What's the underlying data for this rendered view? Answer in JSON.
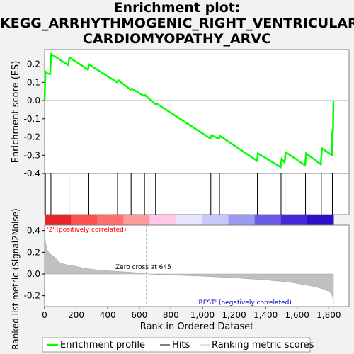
{
  "title_lines": [
    "Enrichment plot:",
    "KEGG_ARRHYTHMOGENIC_RIGHT_VENTRICULAR_",
    "CARDIOMYOPATHY_ARVC"
  ],
  "chart_data": {
    "type": "line",
    "es_panel": {
      "ylabel": "Enrichment score (ES)",
      "ylim": [
        -0.4,
        0.28
      ],
      "yticks": [
        "0.2",
        "0.1",
        "0.0",
        "-0.1",
        "-0.2",
        "-0.3",
        "-0.4"
      ],
      "ytick_values": [
        0.2,
        0.1,
        0.0,
        -0.1,
        -0.2,
        -0.3,
        -0.4
      ],
      "series": [
        {
          "name": "Enrichment profile",
          "x": [
            0,
            5,
            10,
            15,
            35,
            42,
            150,
            157,
            275,
            282,
            460,
            467,
            545,
            552,
            630,
            637,
            700,
            707,
            1050,
            1057,
            1105,
            1112,
            1345,
            1352,
            1495,
            1502,
            1520,
            1527,
            1650,
            1657,
            1750,
            1757,
            1820,
            1823,
            1827,
            1830
          ],
          "y": [
            0.0,
            0.16,
            0.155,
            0.15,
            0.145,
            0.255,
            0.195,
            0.237,
            0.17,
            0.198,
            0.1,
            0.112,
            0.06,
            0.065,
            0.025,
            0.03,
            -0.02,
            -0.015,
            -0.208,
            -0.19,
            -0.21,
            -0.195,
            -0.33,
            -0.29,
            -0.365,
            -0.32,
            -0.34,
            -0.283,
            -0.355,
            -0.29,
            -0.35,
            -0.262,
            -0.3,
            -0.17,
            -0.17,
            0.0
          ]
        }
      ]
    },
    "hits": [
      5,
      40,
      155,
      280,
      462,
      548,
      633,
      703,
      1053,
      1108,
      1348,
      1498,
      1523,
      1653,
      1753,
      1823,
      1827
    ],
    "heatmap_colors": [
      "#e8262a",
      "#ff4f4f",
      "#ff7070",
      "#ff9a9a",
      "#ffc8e6",
      "#e6e6ff",
      "#c8c8ff",
      "#9a9af0",
      "#6a5ae8",
      "#4628d8",
      "#2a10c8"
    ],
    "metric_panel": {
      "ylabel": "Ranked list metric (Signal2Noise)",
      "ylim": [
        -0.3,
        0.45
      ],
      "yticks": [
        "0.4",
        "0.2",
        "0.0",
        "-0.2"
      ],
      "ytick_values": [
        0.4,
        0.2,
        0.0,
        -0.2
      ],
      "x": [
        0,
        5,
        15,
        30,
        60,
        80,
        100,
        140,
        200,
        260,
        320,
        400,
        500,
        600,
        645,
        800,
        1000,
        1200,
        1400,
        1550,
        1650,
        1720,
        1770,
        1800,
        1815,
        1825,
        1830
      ],
      "values": [
        0.43,
        0.3,
        0.23,
        0.19,
        0.16,
        0.13,
        0.1,
        0.085,
        0.07,
        0.05,
        0.04,
        0.03,
        0.02,
        0.01,
        0.0,
        -0.01,
        -0.02,
        -0.035,
        -0.055,
        -0.075,
        -0.1,
        -0.12,
        -0.14,
        -0.16,
        -0.18,
        -0.21,
        -0.28
      ],
      "label_pos": "'2' (positively correlated)",
      "label_neg": "'REST' (negatively correlated)",
      "zero_cross": "Zero cross at 645",
      "zero_cross_x": 645
    },
    "xaxis": {
      "xlabel": "Rank in Ordered Dataset",
      "xlim": [
        0,
        1830
      ],
      "xticks": [
        "0",
        "200",
        "400",
        "600",
        "800",
        "1,000",
        "1,200",
        "1,400",
        "1,600",
        "1,800"
      ],
      "xtick_values": [
        0,
        200,
        400,
        600,
        800,
        1000,
        1200,
        1400,
        1600,
        1800
      ]
    },
    "legend": {
      "position": "bottom",
      "items": [
        "Enrichment profile",
        "Hits",
        "Ranking metric scores"
      ],
      "colors": [
        "#00ff00",
        "#000000",
        "#c0c0c0"
      ]
    },
    "colors": {
      "profile": "#00ff00",
      "hits": "#000000",
      "metric_fill": "#c0c0c0",
      "label_pos": "#ff0000",
      "label_neg": "#0000cc"
    }
  }
}
